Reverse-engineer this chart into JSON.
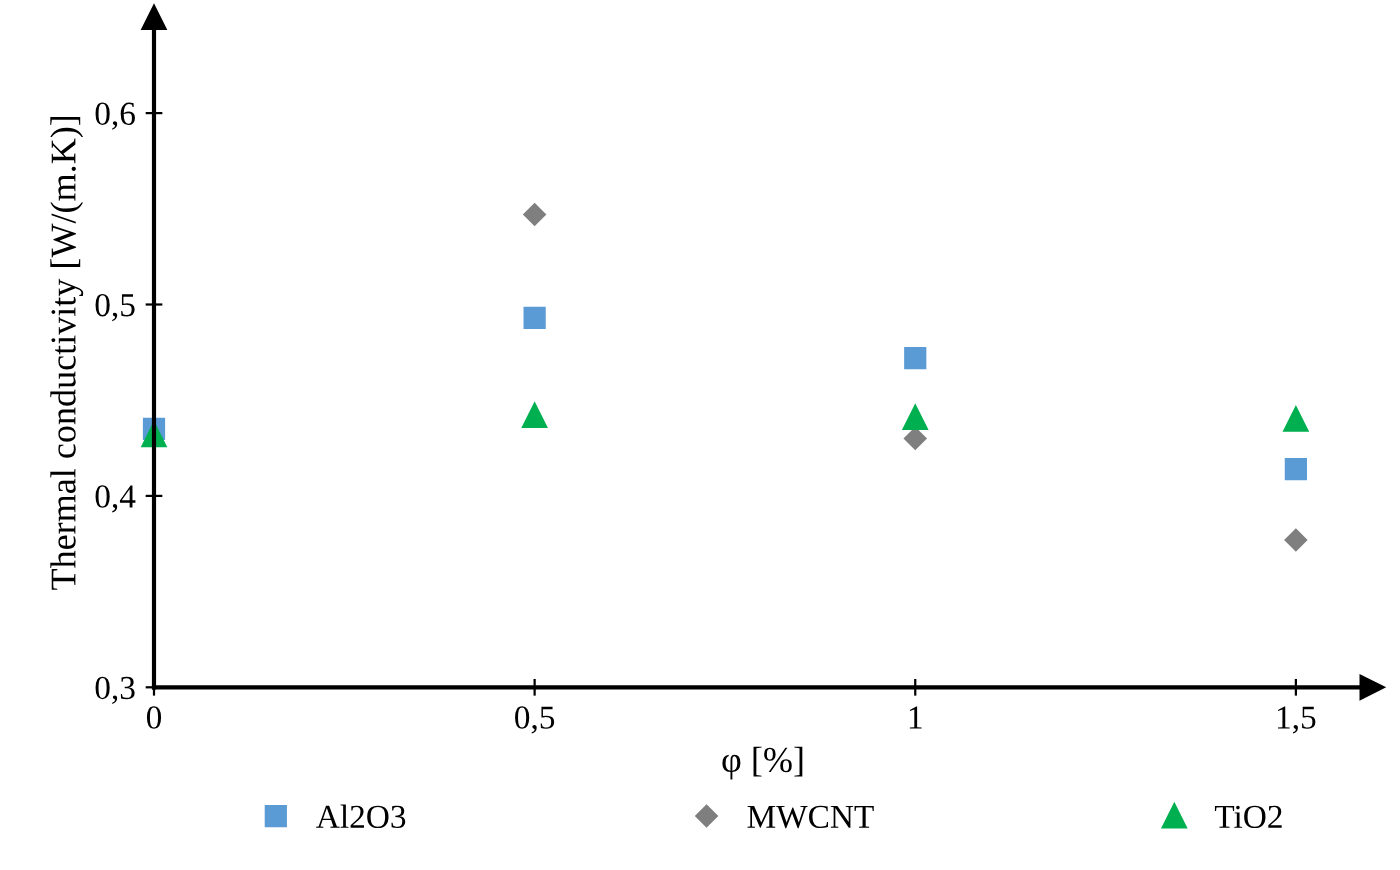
{
  "chart_data": {
    "type": "scatter",
    "xlabel": "φ [%]",
    "ylabel": "Thermal conductivity [W/(m.K)]",
    "x": [
      0,
      0.5,
      1,
      1.5
    ],
    "series": [
      {
        "name": "Al2O3",
        "color": "#5b9bd5",
        "marker": "square",
        "values": [
          0.435,
          0.493,
          0.472,
          0.414
        ]
      },
      {
        "name": "MWCNT",
        "color": "#7f7f7f",
        "marker": "diamond",
        "values": [
          null,
          0.547,
          0.43,
          0.377
        ]
      },
      {
        "name": "TiO2",
        "color": "#00b050",
        "marker": "triangle",
        "values": [
          0.432,
          0.442,
          0.441,
          0.44
        ]
      }
    ],
    "xlim": [
      0,
      1.6
    ],
    "xticks": [
      0,
      {
        "value": 0.5,
        "label": "0,5"
      },
      1,
      {
        "value": 1.5,
        "label": "1,5"
      }
    ],
    "ylim": [
      0.3,
      0.65
    ],
    "yticks": [
      {
        "value": 0.3,
        "label": "0,3"
      },
      {
        "value": 0.4,
        "label": "0,4"
      },
      {
        "value": 0.5,
        "label": "0,5"
      },
      {
        "value": 0.6,
        "label": "0,6"
      }
    ],
    "grid": false,
    "legend": "bottom"
  }
}
